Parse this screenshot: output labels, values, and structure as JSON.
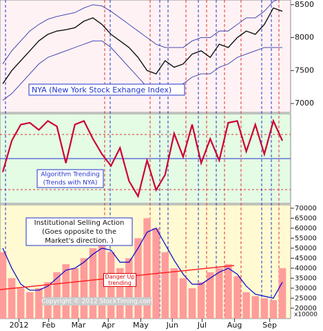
{
  "chart_data": [
    {
      "type": "line",
      "title": "NYA (New York Stock Exhange Index)",
      "xlim": [
        0,
        31
      ],
      "ylim": [
        6865,
        8571
      ],
      "yticks": [
        7000,
        7500,
        8000,
        8500
      ],
      "series": [
        {
          "name": "NYA",
          "color": "#111111",
          "values": [
            7300,
            7500,
            7650,
            7800,
            7950,
            8050,
            8100,
            8120,
            8150,
            8250,
            8300,
            8200,
            8050,
            7950,
            7850,
            7700,
            7500,
            7450,
            7650,
            7550,
            7600,
            7750,
            7800,
            7700,
            7900,
            7850,
            8000,
            8100,
            8050,
            8200,
            8450,
            8400
          ]
        },
        {
          "name": "Upper band",
          "color": "#3333aa",
          "values": [
            7600,
            7800,
            7950,
            8100,
            8200,
            8280,
            8320,
            8350,
            8380,
            8450,
            8500,
            8480,
            8400,
            8300,
            8200,
            8100,
            8000,
            7900,
            7850,
            7850,
            7850,
            7950,
            8000,
            8000,
            8100,
            8100,
            8200,
            8300,
            8300,
            8400,
            8550,
            8600
          ]
        },
        {
          "name": "Lower band",
          "color": "#3333aa",
          "values": [
            7050,
            7150,
            7300,
            7450,
            7600,
            7700,
            7750,
            7800,
            7850,
            7900,
            7950,
            7950,
            7850,
            7700,
            7550,
            7400,
            7250,
            7150,
            7200,
            7250,
            7300,
            7400,
            7450,
            7450,
            7550,
            7600,
            7700,
            7750,
            7800,
            7850,
            7850,
            7850
          ]
        }
      ]
    },
    {
      "type": "line",
      "title": "Algorithm Trending",
      "subtitle": "(Trends with NYA)",
      "xlim": [
        0,
        31
      ],
      "ylim": [
        0,
        100
      ],
      "series": [
        {
          "name": "Algorithm",
          "color": "#cc0033",
          "values": [
            35,
            70,
            88,
            90,
            82,
            92,
            86,
            45,
            88,
            92,
            72,
            55,
            42,
            62,
            25,
            8,
            48,
            15,
            32,
            78,
            52,
            88,
            45,
            72,
            48,
            90,
            92,
            58,
            88,
            55,
            92,
            70
          ]
        }
      ]
    },
    {
      "type": "bar",
      "title": "Institutional Selling Action",
      "subtitle": "(Goes opposite to the",
      "note": "Market's direction. )",
      "annotation": "Danger Up trending",
      "copyright": "Copyright © 2012 StockTiming.com",
      "unit": "x10000",
      "xlim": [
        0,
        31
      ],
      "ylim": [
        14800,
        71700
      ],
      "yticks": [
        20000,
        25000,
        30000,
        35000,
        40000,
        45000,
        50000,
        55000,
        60000,
        65000,
        70000
      ],
      "xticks": [
        {
          "value": 1.8,
          "label": "2012"
        },
        {
          "value": 5.1,
          "label": "Feb"
        },
        {
          "value": 8.4,
          "label": "Mar"
        },
        {
          "value": 11.7,
          "label": "Apr"
        },
        {
          "value": 15.3,
          "label": "May"
        },
        {
          "value": 18.8,
          "label": "Jun"
        },
        {
          "value": 22.1,
          "label": "Jul"
        },
        {
          "value": 25.7,
          "label": "Aug"
        },
        {
          "value": 29.6,
          "label": "Sep"
        }
      ],
      "series": [
        {
          "name": "Volume",
          "color": "#ff9c9c",
          "values": [
            48000,
            35000,
            30000,
            28000,
            30000,
            33000,
            38000,
            42000,
            40000,
            45000,
            50000,
            52000,
            48000,
            40000,
            45000,
            55000,
            65000,
            60000,
            48000,
            40000,
            35000,
            30000,
            33000,
            38000,
            40000,
            42000,
            36000,
            28000,
            26000,
            25000,
            24000,
            40000
          ]
        },
        {
          "name": "Average",
          "color": "#0000cc",
          "values": [
            50000,
            40000,
            32000,
            29000,
            29000,
            31000,
            35000,
            39000,
            40000,
            43000,
            47000,
            50000,
            49000,
            43000,
            43000,
            50000,
            58000,
            60000,
            52000,
            44000,
            37000,
            32000,
            32000,
            35000,
            38000,
            40000,
            37000,
            31000,
            27000,
            26000,
            25000,
            33000
          ]
        }
      ]
    }
  ]
}
